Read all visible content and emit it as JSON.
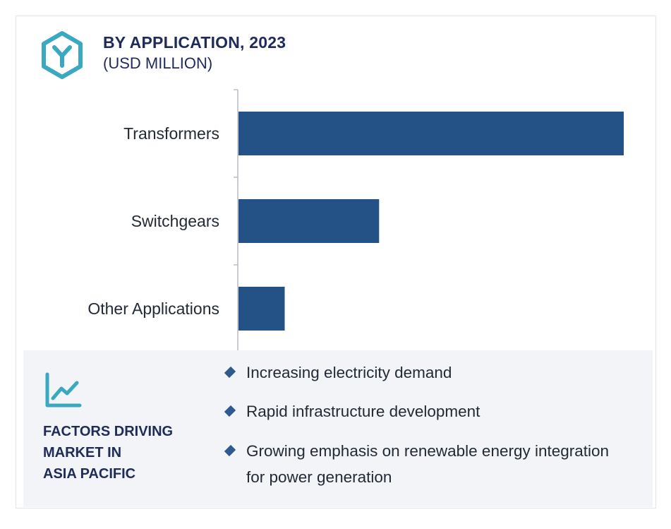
{
  "header": {
    "title": "BY APPLICATION, 2023",
    "subtitle": "(USD MILLION)",
    "logo_icon": "hexagon-y-logo-icon"
  },
  "chart_data": {
    "type": "bar",
    "orientation": "horizontal",
    "categories": [
      "Transformers",
      "Switchgears",
      "Other Applications"
    ],
    "values": [
      100,
      36.5,
      12
    ],
    "title": "BY APPLICATION, 2023",
    "subtitle": "(USD MILLION)",
    "value_labels_shown": false,
    "grid": false,
    "bar_color": "#245287"
  },
  "factors": {
    "icon": "line-chart-icon",
    "heading": "FACTORS DRIVING\nMARKET IN\nASIA PACIFIC",
    "items": [
      "Increasing electricity demand",
      "Rapid infrastructure development",
      "Growing emphasis on renewable energy integration for power generation"
    ]
  },
  "colors": {
    "navy": "#1e2b5b",
    "bar": "#245287",
    "accent_teal": "#3aa8c1",
    "panel_bg": "#f3f4f7"
  }
}
